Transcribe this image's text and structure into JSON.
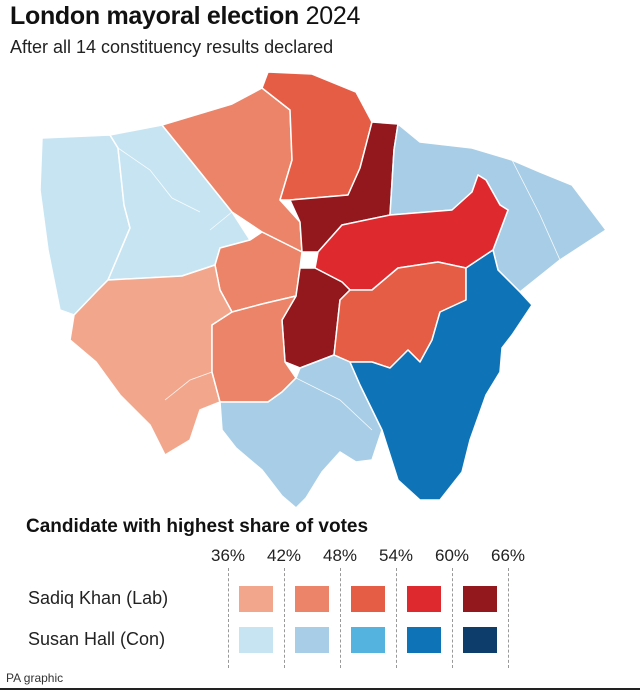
{
  "header": {
    "title_bold": "London mayoral election",
    "title_year": "2024",
    "subtitle": "After all 14 constituency results declared"
  },
  "legend": {
    "title": "Candidate with highest share of votes",
    "thresholds": [
      "36%",
      "42%",
      "48%",
      "54%",
      "60%",
      "66%"
    ],
    "rows": [
      {
        "label": "Sadiq Khan (Lab)",
        "colors": [
          "#f2a78d",
          "#eb8468",
          "#e65d45",
          "#de2a2f",
          "#92181d"
        ]
      },
      {
        "label": "Susan Hall (Con)",
        "colors": [
          "#c7e4f3",
          "#a8cde6",
          "#55b3df",
          "#0f73b8",
          "#0c3d6b"
        ]
      }
    ]
  },
  "map": {
    "constituencies": [
      {
        "winner": "Susan Hall (Con)",
        "share_band": "36%-42%"
      },
      {
        "winner": "Susan Hall (Con)",
        "share_band": "36%-42%"
      },
      {
        "winner": "Sadiq Khan (Lab)",
        "share_band": "42%-48%"
      },
      {
        "winner": "Sadiq Khan (Lab)",
        "share_band": "48%-54%"
      },
      {
        "winner": "Sadiq Khan (Lab)",
        "share_band": "60%-66%"
      },
      {
        "winner": "Susan Hall (Con)",
        "share_band": "42%-48%"
      },
      {
        "winner": "Sadiq Khan (Lab)",
        "share_band": "54%-60%"
      },
      {
        "winner": "Sadiq Khan (Lab)",
        "share_band": "42%-48%"
      },
      {
        "winner": "Sadiq Khan (Lab)",
        "share_band": "36%-42%"
      },
      {
        "winner": "Sadiq Khan (Lab)",
        "share_band": "60%-66%"
      },
      {
        "winner": "Sadiq Khan (Lab)",
        "share_band": "48%-54%"
      },
      {
        "winner": "Sadiq Khan (Lab)",
        "share_band": "42%-48%"
      },
      {
        "winner": "Susan Hall (Con)",
        "share_band": "42%-48%"
      },
      {
        "winner": "Susan Hall (Con)",
        "share_band": "54%-60%"
      }
    ]
  },
  "footer": {
    "source": "PA graphic"
  }
}
